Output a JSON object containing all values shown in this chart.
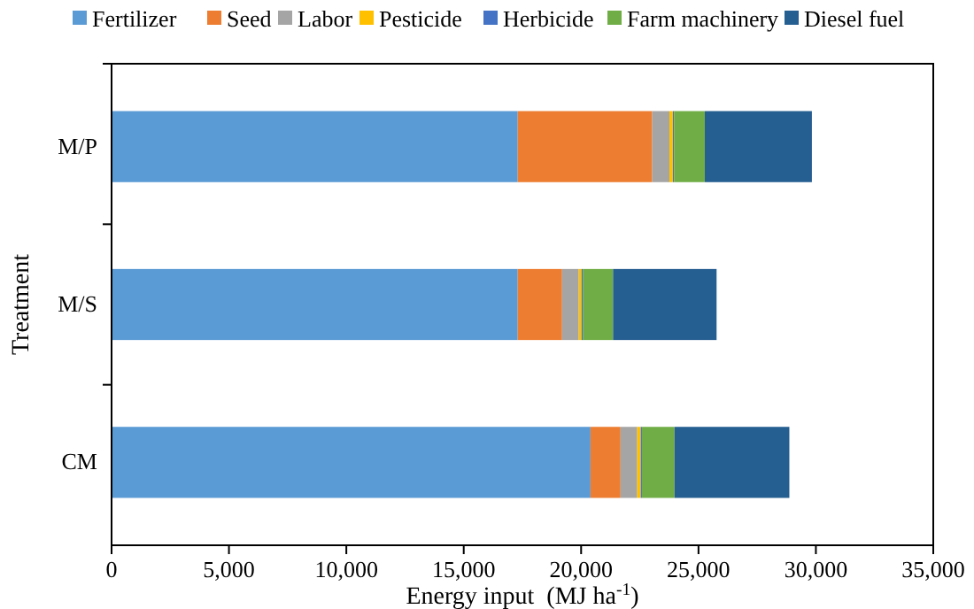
{
  "chart_data": {
    "type": "bar",
    "orientation": "horizontal",
    "stacked": true,
    "xlabel": "Energy input  (MJ ha$^{-1}$)",
    "ylabel": "Treatment",
    "categories": [
      "M/P",
      "M/S",
      "CM"
    ],
    "series": [
      {
        "name": "Fertilizer",
        "color": "#5b9bd5",
        "values": [
          17300,
          17300,
          20400
        ]
      },
      {
        "name": "Seed",
        "color": "#ed7d31",
        "values": [
          5730,
          1890,
          1280
        ]
      },
      {
        "name": "Labor",
        "color": "#a5a5a5",
        "values": [
          730,
          710,
          710
        ]
      },
      {
        "name": "Pesticide",
        "color": "#ffc000",
        "values": [
          150,
          120,
          150
        ]
      },
      {
        "name": "Herbicide",
        "color": "#4472c4",
        "values": [
          50,
          50,
          50
        ]
      },
      {
        "name": "Farm machinery",
        "color": "#70ad47",
        "values": [
          1310,
          1290,
          1390
        ]
      },
      {
        "name": "Diesel fuel",
        "color": "#255e91",
        "values": [
          4560,
          4410,
          4890
        ]
      }
    ],
    "xlim": [
      0,
      35000
    ],
    "xticks": [
      {
        "value": 0,
        "label": "0"
      },
      {
        "value": 5000,
        "label": "5,000"
      },
      {
        "value": 10000,
        "label": "10,000"
      },
      {
        "value": 15000,
        "label": "15,000"
      },
      {
        "value": 20000,
        "label": "20,000"
      },
      {
        "value": 25000,
        "label": "25,000"
      },
      {
        "value": 30000,
        "label": "30,000"
      },
      {
        "value": 35000,
        "label": "35,000"
      }
    ],
    "grid": false,
    "legend": "top"
  }
}
